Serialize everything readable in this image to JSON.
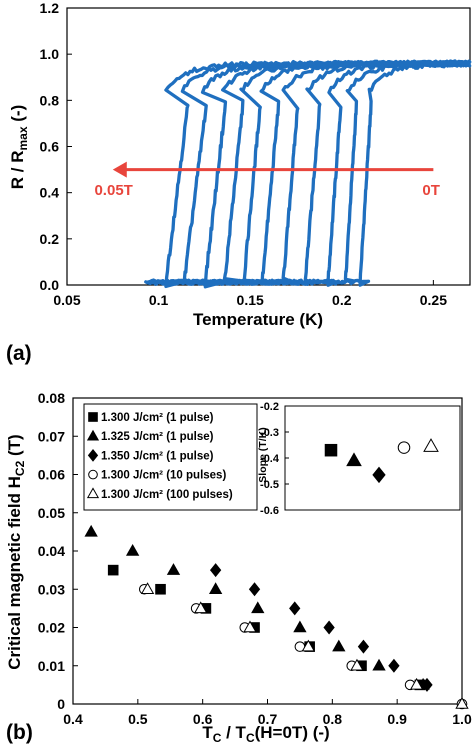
{
  "figure": {
    "panel_a_label": "(a)",
    "panel_b_label": "(b)"
  },
  "chart_data": [
    {
      "type": "line",
      "panel": "(a)",
      "xlabel": "Temperature (K)",
      "ylabel": {
        "main": "R / R",
        "subscript": "max",
        "unit": "(-)"
      },
      "xlim": [
        0.05,
        0.27
      ],
      "ylim": [
        0.0,
        1.2
      ],
      "xticks": [
        "0.05",
        "0.1",
        "0.15",
        "0.2",
        "0.25"
      ],
      "yticks": [
        "0.0",
        "0.2",
        "0.4",
        "0.6",
        "0.8",
        "1.0",
        "1.2"
      ],
      "grid": false,
      "line_color": "#1f6fbf",
      "arrow_color": "#e8453c",
      "annotations": {
        "arrow_from": 0.25,
        "arrow_to": 0.075,
        "arrow_y": 0.5,
        "left_label": "0.05T",
        "right_label": "0T"
      },
      "series": [
        {
          "transition": 0.213,
          "transition_width": 0.003,
          "low_start": 0.145,
          "low_end": 0.215,
          "high_start": 0.215,
          "high_end": 0.27
        },
        {
          "transition": 0.205,
          "transition_width": 0.003,
          "low_start": 0.132,
          "low_end": 0.207,
          "high_start": 0.203,
          "high_end": 0.27
        },
        {
          "transition": 0.196,
          "transition_width": 0.0035,
          "low_start": 0.125,
          "low_end": 0.199,
          "high_start": 0.193,
          "high_end": 0.27
        },
        {
          "transition": 0.184,
          "transition_width": 0.004,
          "low_start": 0.12,
          "low_end": 0.188,
          "high_start": 0.181,
          "high_end": 0.27
        },
        {
          "transition": 0.172,
          "transition_width": 0.004,
          "low_start": 0.114,
          "low_end": 0.176,
          "high_start": 0.168,
          "high_end": 0.27
        },
        {
          "transition": 0.161,
          "transition_width": 0.0045,
          "low_start": 0.108,
          "low_end": 0.165,
          "high_start": 0.156,
          "high_end": 0.27
        },
        {
          "transition": 0.151,
          "transition_width": 0.0045,
          "low_start": 0.104,
          "low_end": 0.155,
          "high_start": 0.145,
          "high_end": 0.27
        },
        {
          "transition": 0.141,
          "transition_width": 0.005,
          "low_start": 0.1,
          "low_end": 0.146,
          "high_start": 0.135,
          "high_end": 0.27
        },
        {
          "transition": 0.131,
          "transition_width": 0.0055,
          "low_start": 0.096,
          "low_end": 0.136,
          "high_start": 0.124,
          "high_end": 0.27
        },
        {
          "transition": 0.12,
          "transition_width": 0.006,
          "low_start": 0.094,
          "low_end": 0.126,
          "high_start": 0.113,
          "high_end": 0.27
        },
        {
          "transition": 0.11,
          "transition_width": 0.006,
          "low_start": 0.093,
          "low_end": 0.117,
          "high_start": 0.104,
          "high_end": 0.27
        }
      ]
    },
    {
      "type": "scatter",
      "panel": "(b)",
      "xlabel": {
        "main": "T",
        "sub1": "C",
        "middle": " / T",
        "sub2": "C",
        "tail": "(H=0T) (-)"
      },
      "ylabel": {
        "main": "Critical magnetic field H",
        "subscript": "C2",
        "unit": " (T)"
      },
      "xlim": [
        0.4,
        1.0
      ],
      "ylim": [
        0.0,
        0.08
      ],
      "xticks": [
        "0.4",
        "0.5",
        "0.6",
        "0.7",
        "0.8",
        "0.9",
        "1.0"
      ],
      "yticks": [
        "0",
        "0.01",
        "0.02",
        "0.03",
        "0.04",
        "0.05",
        "0.06",
        "0.07",
        "0.08"
      ],
      "grid": false,
      "legend_placement": "top-left",
      "series": [
        {
          "name": "1.300 J/cm² (1 pulse)",
          "marker": "square",
          "filled": true,
          "points": [
            [
              0.462,
              0.035
            ],
            [
              0.535,
              0.03
            ],
            [
              0.605,
              0.025
            ],
            [
              0.68,
              0.02
            ],
            [
              0.765,
              0.015
            ],
            [
              0.845,
              0.01
            ],
            [
              0.935,
              0.005
            ]
          ]
        },
        {
          "name": "1.325 J/cm² (1 pulse)",
          "marker": "triangle",
          "filled": true,
          "points": [
            [
              0.428,
              0.045
            ],
            [
              0.492,
              0.04
            ],
            [
              0.555,
              0.035
            ],
            [
              0.62,
              0.03
            ],
            [
              0.685,
              0.025
            ],
            [
              0.75,
              0.02
            ],
            [
              0.81,
              0.015
            ],
            [
              0.872,
              0.01
            ],
            [
              0.94,
              0.005
            ]
          ]
        },
        {
          "name": "1.350 J/cm² (1 pulse)",
          "marker": "diamond",
          "filled": true,
          "points": [
            [
              0.62,
              0.035
            ],
            [
              0.68,
              0.03
            ],
            [
              0.742,
              0.025
            ],
            [
              0.795,
              0.02
            ],
            [
              0.848,
              0.015
            ],
            [
              0.895,
              0.01
            ],
            [
              0.946,
              0.005
            ]
          ]
        },
        {
          "name": "1.300 J/cm² (10 pulses)",
          "marker": "circle",
          "filled": false,
          "points": [
            [
              0.51,
              0.03
            ],
            [
              0.59,
              0.025
            ],
            [
              0.665,
              0.02
            ],
            [
              0.75,
              0.015
            ],
            [
              0.83,
              0.01
            ],
            [
              0.92,
              0.005
            ],
            [
              1.0,
              0.0
            ]
          ]
        },
        {
          "name": "1.300 J/cm² (100 pulses)",
          "marker": "triangle",
          "filled": false,
          "points": [
            [
              0.515,
              0.03
            ],
            [
              0.597,
              0.025
            ],
            [
              0.673,
              0.02
            ],
            [
              0.763,
              0.015
            ],
            [
              0.838,
              0.01
            ],
            [
              0.93,
              0.005
            ],
            [
              1.0,
              0.0
            ]
          ]
        }
      ],
      "inset": {
        "ylabel": "Slope (T/K)",
        "ylim": [
          -0.6,
          -0.2
        ],
        "yticks": [
          "-0.2",
          "-0.3",
          "-0.4",
          "-0.5",
          "-0.6"
        ],
        "points": [
          {
            "series": 0,
            "slope": -0.37
          },
          {
            "series": 1,
            "slope": -0.41
          },
          {
            "series": 2,
            "slope": -0.465
          },
          {
            "series": 3,
            "slope": -0.36
          },
          {
            "series": 4,
            "slope": -0.355
          }
        ]
      }
    }
  ]
}
